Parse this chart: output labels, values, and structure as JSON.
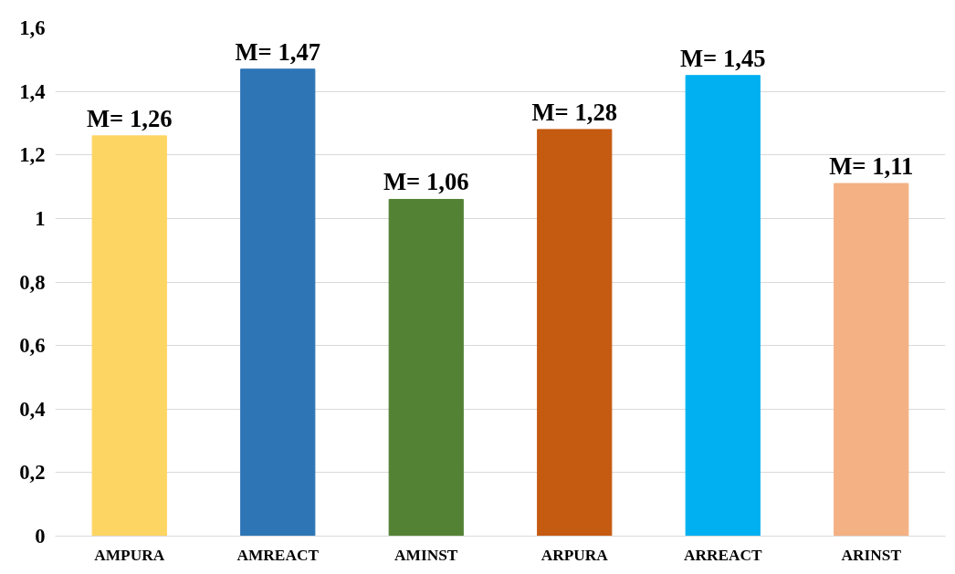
{
  "chart_data": {
    "type": "bar",
    "categories": [
      "AMPURA",
      "AMREACT",
      "AMINST",
      "ARPURA",
      "ARREACT",
      "ARINST"
    ],
    "values": [
      1.26,
      1.47,
      1.06,
      1.28,
      1.45,
      1.11
    ],
    "colors": [
      "#fdd562",
      "#2e75b6",
      "#548235",
      "#c55a11",
      "#00b0f0",
      "#f4b183"
    ],
    "value_labels": [
      "M= 1,26",
      "M= 1,47",
      "M= 1,06",
      "M= 1,28",
      "M= 1,45",
      "M= 1,11"
    ],
    "ylim": [
      0,
      1.6
    ],
    "yticks": [
      0,
      {
        "value": 0.2,
        "label": "0,2"
      },
      {
        "value": 0.4,
        "label": "0,4"
      },
      {
        "value": 0.6,
        "label": "0,6"
      },
      {
        "value": 0.8,
        "label": "0,8"
      },
      1,
      {
        "value": 1.2,
        "label": "1,2"
      },
      {
        "value": 1.4,
        "label": "1,4"
      },
      {
        "value": 1.6,
        "label": "1,6"
      }
    ],
    "grid": "y"
  }
}
